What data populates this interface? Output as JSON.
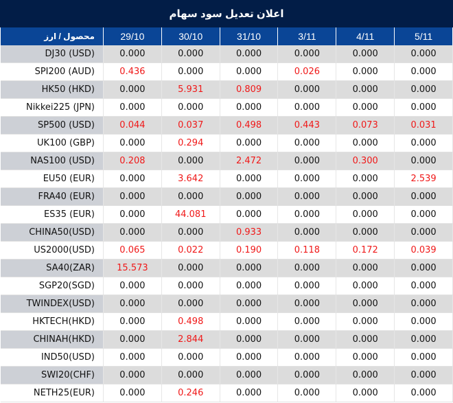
{
  "title": "اعلان تعدیل سود سهام",
  "colors": {
    "title_bg": "#021d47",
    "header_bg": "#0a4596",
    "positive_value": "#f01818"
  },
  "columns": [
    "محصول / ارز",
    "29/10",
    "30/10",
    "31/10",
    "3/11",
    "4/11",
    "5/11"
  ],
  "rows": [
    {
      "name": "DJ30 (USD)",
      "values": [
        "0.000",
        "0.000",
        "0.000",
        "0.000",
        "0.000",
        "0.000"
      ]
    },
    {
      "name": "SPI200 (AUD)",
      "values": [
        "0.436",
        "0.000",
        "0.000",
        "0.026",
        "0.000",
        "0.000"
      ]
    },
    {
      "name": "HK50 (HKD)",
      "values": [
        "0.000",
        "5.931",
        "0.809",
        "0.000",
        "0.000",
        "0.000"
      ]
    },
    {
      "name": "Nikkei225 (JPN)",
      "values": [
        "0.000",
        "0.000",
        "0.000",
        "0.000",
        "0.000",
        "0.000"
      ]
    },
    {
      "name": "SP500 (USD)",
      "values": [
        "0.044",
        "0.037",
        "0.498",
        "0.443",
        "0.073",
        "0.031"
      ]
    },
    {
      "name": "UK100 (GBP)",
      "values": [
        "0.000",
        "0.294",
        "0.000",
        "0.000",
        "0.000",
        "0.000"
      ]
    },
    {
      "name": "NAS100 (USD)",
      "values": [
        "0.208",
        "0.000",
        "2.472",
        "0.000",
        "0.300",
        "0.000"
      ]
    },
    {
      "name": "EU50 (EUR)",
      "values": [
        "0.000",
        "3.642",
        "0.000",
        "0.000",
        "0.000",
        "2.539"
      ]
    },
    {
      "name": "FRA40 (EUR)",
      "values": [
        "0.000",
        "0.000",
        "0.000",
        "0.000",
        "0.000",
        "0.000"
      ]
    },
    {
      "name": "ES35 (EUR)",
      "values": [
        "0.000",
        "44.081",
        "0.000",
        "0.000",
        "0.000",
        "0.000"
      ]
    },
    {
      "name": "CHINA50(USD)",
      "values": [
        "0.000",
        "0.000",
        "0.933",
        "0.000",
        "0.000",
        "0.000"
      ]
    },
    {
      "name": "US2000(USD)",
      "values": [
        "0.065",
        "0.022",
        "0.190",
        "0.118",
        "0.172",
        "0.039"
      ]
    },
    {
      "name": "SA40(ZAR)",
      "values": [
        "15.573",
        "0.000",
        "0.000",
        "0.000",
        "0.000",
        "0.000"
      ]
    },
    {
      "name": "SGP20(SGD)",
      "values": [
        "0.000",
        "0.000",
        "0.000",
        "0.000",
        "0.000",
        "0.000"
      ]
    },
    {
      "name": "TWINDEX(USD)",
      "values": [
        "0.000",
        "0.000",
        "0.000",
        "0.000",
        "0.000",
        "0.000"
      ]
    },
    {
      "name": "HKTECH(HKD)",
      "values": [
        "0.000",
        "0.498",
        "0.000",
        "0.000",
        "0.000",
        "0.000"
      ]
    },
    {
      "name": "CHINAH(HKD)",
      "values": [
        "0.000",
        "2.844",
        "0.000",
        "0.000",
        "0.000",
        "0.000"
      ]
    },
    {
      "name": "IND50(USD)",
      "values": [
        "0.000",
        "0.000",
        "0.000",
        "0.000",
        "0.000",
        "0.000"
      ]
    },
    {
      "name": "SWI20(CHF)",
      "values": [
        "0.000",
        "0.000",
        "0.000",
        "0.000",
        "0.000",
        "0.000"
      ]
    },
    {
      "name": "NETH25(EUR)",
      "values": [
        "0.000",
        "0.246",
        "0.000",
        "0.000",
        "0.000",
        "0.000"
      ]
    }
  ]
}
